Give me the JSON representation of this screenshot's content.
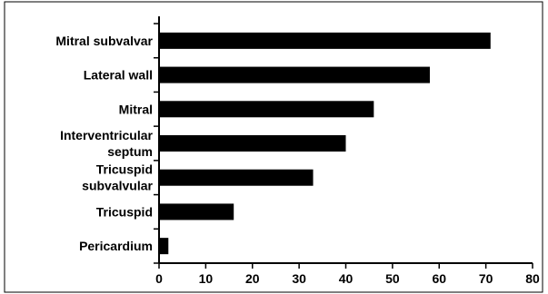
{
  "chart_data": {
    "type": "bar",
    "orientation": "horizontal",
    "categories": [
      [
        "Mitral subvalvar"
      ],
      [
        "Lateral wall"
      ],
      [
        "Mitral"
      ],
      [
        "Interventricular",
        "septum"
      ],
      [
        "Tricuspid",
        "subvalvular"
      ],
      [
        "Tricuspid"
      ],
      [
        "Pericardium"
      ]
    ],
    "values": [
      71,
      58,
      46,
      40,
      33,
      16,
      2
    ],
    "xlim": [
      0,
      80
    ],
    "xticks": [
      0,
      10,
      20,
      30,
      40,
      50,
      60,
      70,
      80
    ],
    "title": "",
    "xlabel": "",
    "ylabel": "",
    "grid": false,
    "bar_color": "#000000",
    "frame_color": "#000000"
  }
}
